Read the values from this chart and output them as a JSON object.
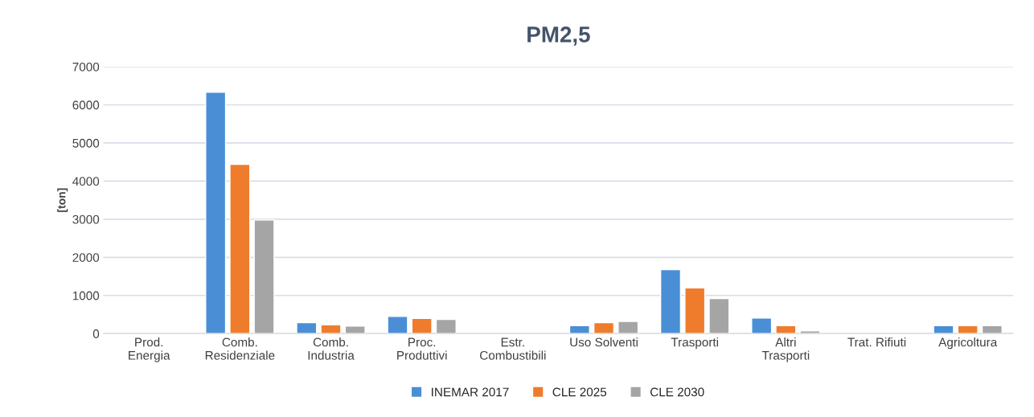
{
  "chart_data": {
    "type": "bar",
    "title": "PM2,5",
    "ylabel": "[ton]",
    "categories": [
      "Prod.\nEnergia",
      "Comb.\nResidenziale",
      "Comb.\nIndustria",
      "Proc.\nProduttivi",
      "Estr.\nCombustibili",
      "Uso Solventi",
      "Trasporti",
      "Altri\nTrasporti",
      "Trat. Rifiuti",
      "Agricoltura"
    ],
    "series": [
      {
        "name": "INEMAR 2017",
        "color": "#4a8fd6",
        "values": [
          null,
          6330,
          290,
          450,
          null,
          210,
          1680,
          410,
          null,
          210
        ]
      },
      {
        "name": "CLE 2025",
        "color": "#ef7c2c",
        "values": [
          null,
          4440,
          230,
          400,
          null,
          290,
          1200,
          210,
          null,
          210
        ]
      },
      {
        "name": "CLE 2030",
        "color": "#a5a5a5",
        "values": [
          null,
          2980,
          200,
          370,
          null,
          320,
          920,
          70,
          null,
          210
        ]
      }
    ],
    "ylim": [
      0,
      7000
    ],
    "yticks": [
      0,
      1000,
      2000,
      3000,
      4000,
      5000,
      6000,
      7000
    ],
    "grid": "y",
    "legend": "bottom"
  }
}
